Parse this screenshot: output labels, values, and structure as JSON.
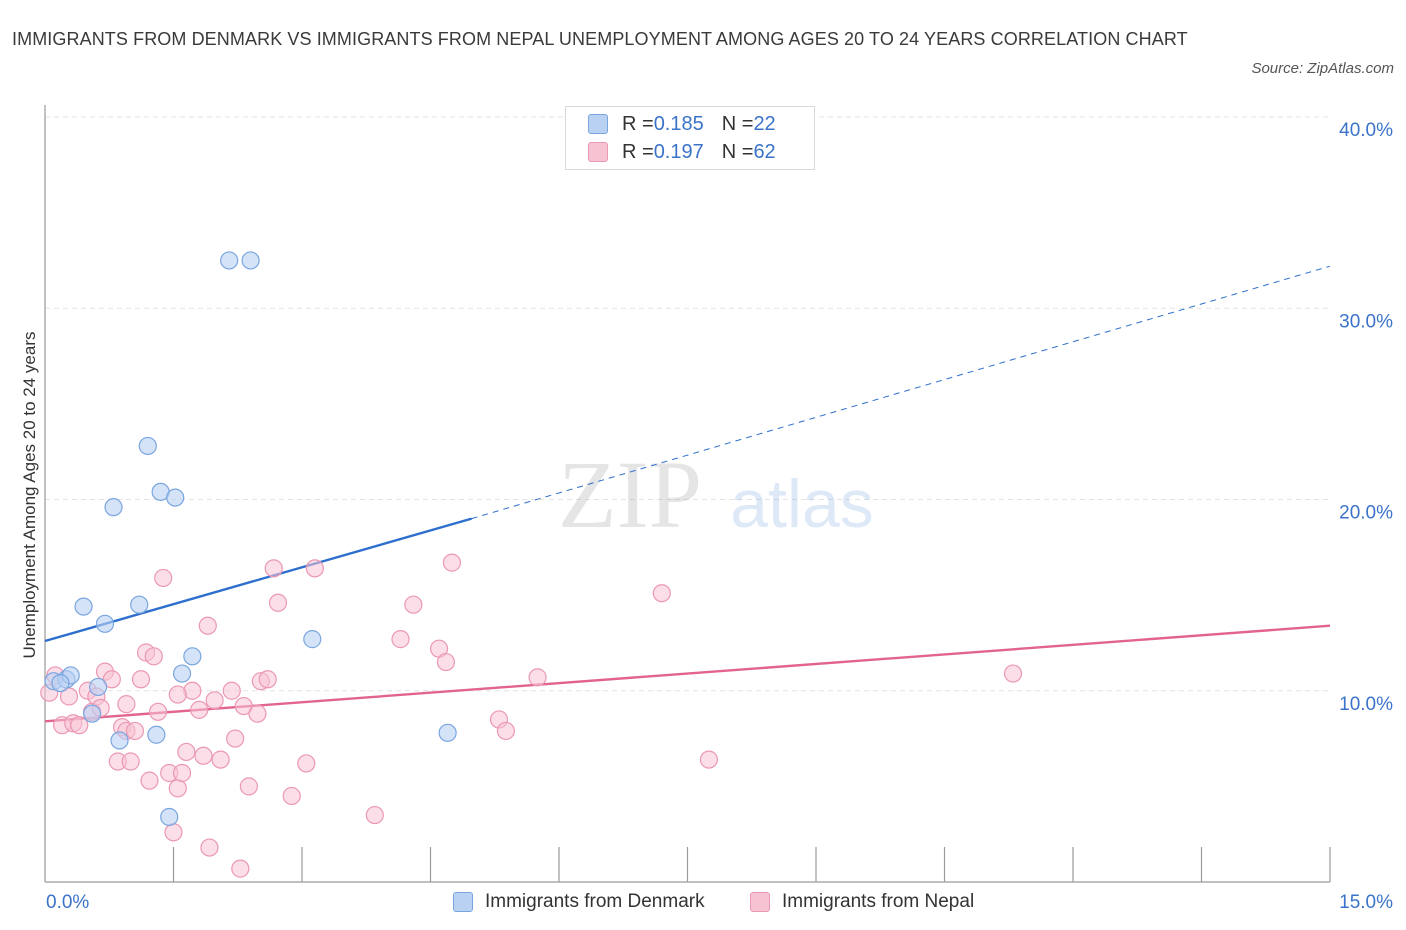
{
  "header": {
    "title": "IMMIGRANTS FROM DENMARK VS IMMIGRANTS FROM NEPAL UNEMPLOYMENT AMONG AGES 20 TO 24 YEARS CORRELATION CHART",
    "source": "Source: ZipAtlas.com"
  },
  "legend": {
    "denmark": {
      "r_label": "R = ",
      "r_value": "0.185",
      "n_label": "N = ",
      "n_value": "22"
    },
    "nepal": {
      "r_label": "R = ",
      "r_value": "0.197",
      "n_label": "N = ",
      "n_value": "62"
    }
  },
  "watermark": {
    "zip": "ZIP",
    "atlas": "atlas"
  },
  "colors": {
    "denmark_fill": "#b9d1f3",
    "denmark_stroke": "#7aa6e0",
    "denmark_line": "#2e6fce",
    "nepal_fill": "#f7c3d3",
    "nepal_stroke": "#eb98b3",
    "nepal_line": "#e2648e",
    "axis_tick_text": "#3b73c9",
    "grid": "#e3e3e3"
  },
  "chart_data": {
    "type": "scatter",
    "title": "IMMIGRANTS FROM DENMARK VS IMMIGRANTS FROM NEPAL UNEMPLOYMENT AMONG AGES 20 TO 24 YEARS CORRELATION CHART",
    "xlabel": "",
    "ylabel": "Unemployment Among Ages 20 to 24 years",
    "xlim": [
      0,
      15
    ],
    "ylim": [
      0,
      40
    ],
    "x_tick_labels": [
      "0.0%",
      "15.0%"
    ],
    "y_ticks": [
      10,
      20,
      30,
      40
    ],
    "y_tick_labels": [
      "10.0%",
      "20.0%",
      "30.0%",
      "40.0%"
    ],
    "grid": true,
    "legend_position": "top-center",
    "series": [
      {
        "name": "Immigrants from Denmark",
        "R": 0.185,
        "N": 22,
        "trend": {
          "x": [
            0,
            4.98
          ],
          "y": [
            12.6,
            19.0
          ],
          "extended_to": [
            15,
            32.2
          ]
        },
        "points": [
          [
            0.1,
            10.5
          ],
          [
            0.25,
            10.6
          ],
          [
            0.3,
            10.8
          ],
          [
            0.45,
            14.4
          ],
          [
            0.55,
            8.8
          ],
          [
            0.62,
            10.2
          ],
          [
            0.7,
            13.5
          ],
          [
            0.8,
            19.6
          ],
          [
            0.87,
            7.4
          ],
          [
            1.1,
            14.5
          ],
          [
            1.2,
            22.8
          ],
          [
            1.3,
            7.7
          ],
          [
            1.35,
            20.4
          ],
          [
            1.45,
            3.4
          ],
          [
            1.52,
            20.1
          ],
          [
            1.6,
            10.9
          ],
          [
            1.72,
            11.8
          ],
          [
            2.15,
            32.5
          ],
          [
            2.4,
            32.5
          ],
          [
            3.12,
            12.7
          ],
          [
            4.7,
            7.8
          ],
          [
            0.18,
            10.4
          ]
        ]
      },
      {
        "name": "Immigrants from Nepal",
        "R": 0.197,
        "N": 62,
        "trend": {
          "x": [
            0,
            15
          ],
          "y": [
            8.4,
            13.4
          ]
        },
        "points": [
          [
            0.05,
            9.9
          ],
          [
            0.12,
            10.8
          ],
          [
            0.2,
            8.2
          ],
          [
            0.28,
            9.7
          ],
          [
            0.33,
            8.3
          ],
          [
            0.4,
            8.2
          ],
          [
            0.5,
            10.0
          ],
          [
            0.55,
            8.9
          ],
          [
            0.6,
            9.7
          ],
          [
            0.65,
            9.1
          ],
          [
            0.7,
            11.0
          ],
          [
            0.78,
            10.6
          ],
          [
            0.85,
            6.3
          ],
          [
            0.9,
            8.1
          ],
          [
            0.95,
            7.9
          ],
          [
            1.0,
            6.3
          ],
          [
            1.05,
            7.9
          ],
          [
            1.12,
            10.6
          ],
          [
            1.18,
            12.0
          ],
          [
            1.22,
            5.3
          ],
          [
            1.27,
            11.8
          ],
          [
            1.32,
            8.9
          ],
          [
            1.38,
            15.9
          ],
          [
            1.45,
            5.7
          ],
          [
            1.5,
            2.6
          ],
          [
            1.55,
            4.9
          ],
          [
            1.6,
            5.7
          ],
          [
            1.65,
            6.8
          ],
          [
            1.72,
            10.0
          ],
          [
            1.8,
            9.0
          ],
          [
            1.85,
            6.6
          ],
          [
            1.9,
            13.4
          ],
          [
            1.92,
            1.8
          ],
          [
            1.98,
            9.5
          ],
          [
            2.05,
            6.4
          ],
          [
            2.18,
            10.0
          ],
          [
            2.22,
            7.5
          ],
          [
            2.28,
            0.7
          ],
          [
            2.32,
            9.2
          ],
          [
            2.38,
            5.0
          ],
          [
            2.48,
            8.8
          ],
          [
            2.52,
            10.5
          ],
          [
            2.6,
            10.6
          ],
          [
            2.67,
            16.4
          ],
          [
            2.72,
            14.6
          ],
          [
            2.88,
            4.5
          ],
          [
            3.05,
            6.2
          ],
          [
            3.15,
            16.4
          ],
          [
            3.85,
            3.5
          ],
          [
            4.15,
            12.7
          ],
          [
            4.3,
            14.5
          ],
          [
            4.6,
            12.2
          ],
          [
            4.68,
            11.5
          ],
          [
            4.75,
            16.7
          ],
          [
            5.3,
            8.5
          ],
          [
            5.38,
            7.9
          ],
          [
            5.75,
            10.7
          ],
          [
            7.2,
            15.1
          ],
          [
            7.75,
            6.4
          ],
          [
            11.3,
            10.9
          ],
          [
            0.95,
            9.3
          ],
          [
            1.55,
            9.8
          ]
        ]
      }
    ]
  },
  "bottom_legend": {
    "denmark": "Immigrants from Denmark",
    "nepal": "Immigrants from Nepal"
  }
}
